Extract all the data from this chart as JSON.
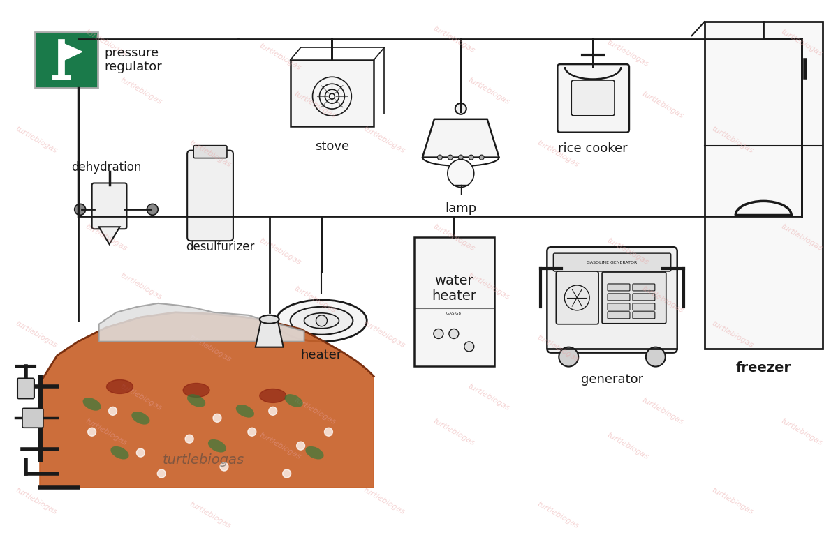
{
  "bg_color": "#ffffff",
  "watermark_text": "turtlebiogas",
  "watermark_color": "#e8a0a0",
  "watermark_alpha": 0.45,
  "line_color": "#1a1a1a",
  "line_width": 2.0,
  "green_box_color": "#1a7a4a",
  "labels": {
    "pressure_regulator": "pressure\nregulator",
    "dehydration": "dehydration",
    "desulfurizer": "desulfurizer",
    "stove": "stove",
    "lamp": "lamp",
    "rice_cooker": "rice cooker",
    "heater": "heater",
    "water_heater": "water\nheater",
    "generator": "generator",
    "freezer": "freezer"
  },
  "font_size": 12,
  "biogas_color": "#c8622a",
  "biogas_symbol_color": "#2d7a3a"
}
